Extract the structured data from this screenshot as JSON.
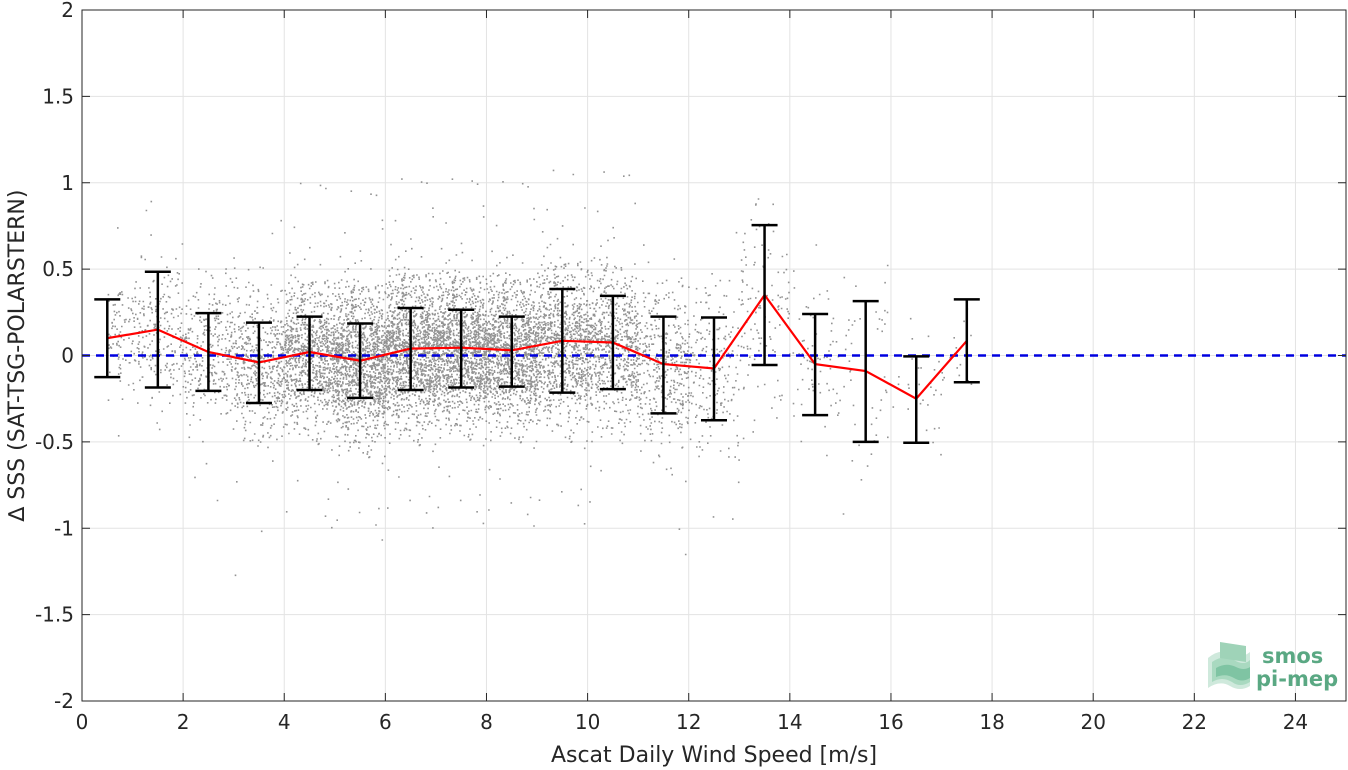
{
  "chart_data": {
    "type": "scatter",
    "title": "",
    "xlabel": "Ascat Daily Wind Speed [m/s]",
    "ylabel": "∆ SSS (SAT-TSG-POLARSTERN)",
    "xlim": [
      0,
      25
    ],
    "ylim": [
      -2,
      2
    ],
    "x_ticks": [
      0,
      2,
      4,
      6,
      8,
      10,
      12,
      14,
      16,
      18,
      20,
      22,
      24
    ],
    "x_tick_labels": [
      "0",
      "2",
      "4",
      "6",
      "8",
      "10",
      "12",
      "14",
      "16",
      "18",
      "20",
      "22",
      "24"
    ],
    "y_ticks": [
      -2,
      -1.5,
      -1,
      -0.5,
      0,
      0.5,
      1,
      1.5,
      2
    ],
    "y_tick_labels": [
      "-2",
      "-1.5",
      "-1",
      "-0.5",
      "0",
      "0.5",
      "1",
      "1.5",
      "2"
    ],
    "grid": true,
    "zero_line": {
      "y": 0,
      "color": "#0000e0",
      "style": "dashed"
    },
    "scatter_color": "#808080",
    "mean_line_color": "#ff0000",
    "errorbar_color": "#000000",
    "binned_stats": {
      "x": [
        0.5,
        1.5,
        2.5,
        3.5,
        4.5,
        5.5,
        6.5,
        7.5,
        8.5,
        9.5,
        10.5,
        11.5,
        12.5,
        13.5,
        14.5,
        15.5,
        16.5,
        17.5
      ],
      "mean": [
        0.1,
        0.15,
        0.02,
        -0.04,
        0.02,
        -0.03,
        0.04,
        0.045,
        0.03,
        0.085,
        0.075,
        -0.05,
        -0.075,
        0.35,
        -0.05,
        -0.09,
        -0.25,
        0.085
      ],
      "upper": [
        0.325,
        0.485,
        0.245,
        0.19,
        0.225,
        0.185,
        0.275,
        0.265,
        0.225,
        0.385,
        0.345,
        0.225,
        0.22,
        0.755,
        0.24,
        0.315,
        -0.005,
        0.325
      ],
      "lower": [
        -0.125,
        -0.185,
        -0.205,
        -0.275,
        -0.2,
        -0.245,
        -0.2,
        -0.185,
        -0.18,
        -0.215,
        -0.195,
        -0.335,
        -0.375,
        -0.055,
        -0.345,
        -0.5,
        -0.505,
        -0.155
      ]
    },
    "scatter_bins": [
      {
        "x0": 0.5,
        "x1": 1.0,
        "n": 80,
        "sd": 0.17,
        "mean": 0.1
      },
      {
        "x0": 1.0,
        "x1": 2.0,
        "n": 220,
        "sd": 0.2,
        "mean": 0.15
      },
      {
        "x0": 2.0,
        "x1": 3.0,
        "n": 300,
        "sd": 0.2,
        "mean": 0.02
      },
      {
        "x0": 3.0,
        "x1": 4.0,
        "n": 500,
        "sd": 0.2,
        "mean": -0.04
      },
      {
        "x0": 4.0,
        "x1": 5.0,
        "n": 900,
        "sd": 0.2,
        "mean": 0.02
      },
      {
        "x0": 5.0,
        "x1": 6.0,
        "n": 1400,
        "sd": 0.21,
        "mean": -0.03
      },
      {
        "x0": 6.0,
        "x1": 7.0,
        "n": 1600,
        "sd": 0.21,
        "mean": 0.04
      },
      {
        "x0": 7.0,
        "x1": 8.0,
        "n": 1500,
        "sd": 0.2,
        "mean": 0.045
      },
      {
        "x0": 8.0,
        "x1": 9.0,
        "n": 1200,
        "sd": 0.2,
        "mean": 0.03
      },
      {
        "x0": 9.0,
        "x1": 10.0,
        "n": 900,
        "sd": 0.22,
        "mean": 0.085
      },
      {
        "x0": 10.0,
        "x1": 11.0,
        "n": 700,
        "sd": 0.22,
        "mean": 0.075
      },
      {
        "x0": 11.0,
        "x1": 12.0,
        "n": 400,
        "sd": 0.24,
        "mean": -0.05
      },
      {
        "x0": 12.0,
        "x1": 13.0,
        "n": 200,
        "sd": 0.25,
        "mean": -0.075
      },
      {
        "x0": 13.0,
        "x1": 14.0,
        "n": 120,
        "sd": 0.3,
        "mean": 0.3
      },
      {
        "x0": 14.0,
        "x1": 15.0,
        "n": 70,
        "sd": 0.25,
        "mean": -0.05
      },
      {
        "x0": 15.0,
        "x1": 16.0,
        "n": 45,
        "sd": 0.3,
        "mean": -0.1
      },
      {
        "x0": 16.0,
        "x1": 17.0,
        "n": 30,
        "sd": 0.2,
        "mean": -0.2
      },
      {
        "x0": 17.0,
        "x1": 17.6,
        "n": 15,
        "sd": 0.15,
        "mean": 0.05
      }
    ]
  },
  "logo": {
    "line1": "smos",
    "line2": "pi-mep",
    "color": "#5aa883"
  }
}
